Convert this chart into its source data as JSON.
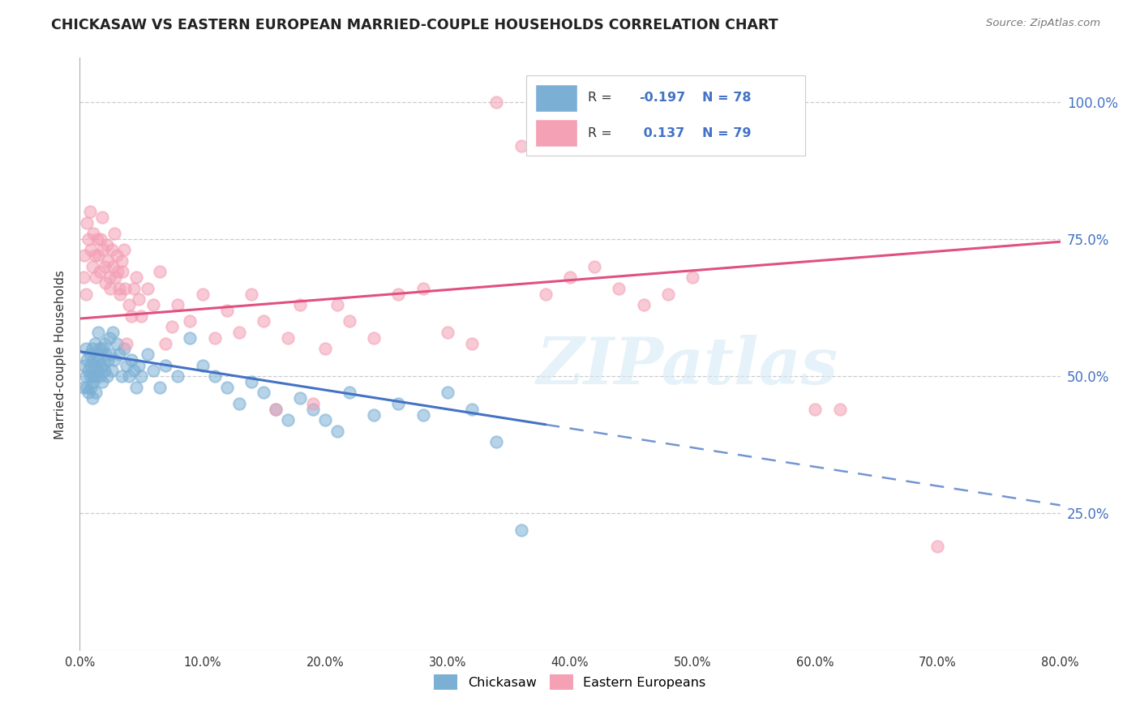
{
  "title": "CHICKASAW VS EASTERN EUROPEAN MARRIED-COUPLE HOUSEHOLDS CORRELATION CHART",
  "source": "Source: ZipAtlas.com",
  "ylabel": "Married-couple Households",
  "ytick_labels": [
    "25.0%",
    "50.0%",
    "75.0%",
    "100.0%"
  ],
  "ytick_values": [
    0.25,
    0.5,
    0.75,
    1.0
  ],
  "xlim": [
    0.0,
    0.8
  ],
  "ylim": [
    0.0,
    1.08
  ],
  "chickasaw_color": "#7bafd4",
  "eastern_color": "#f4a0b5",
  "trend_chickasaw_color": "#4472c4",
  "trend_eastern_color": "#e05080",
  "legend_R_chickasaw": "-0.197",
  "legend_N_chickasaw": "78",
  "legend_R_eastern": " 0.137",
  "legend_N_eastern": "79",
  "watermark": "ZIPatlas",
  "trend_chickasaw_x0": 0.0,
  "trend_chickasaw_y0": 0.545,
  "trend_chickasaw_x1": 0.8,
  "trend_chickasaw_y1": 0.265,
  "trend_eastern_x0": 0.0,
  "trend_eastern_y0": 0.605,
  "trend_eastern_x1": 0.8,
  "trend_eastern_y1": 0.745,
  "trend_chickasaw_solid_end": 0.38,
  "chickasaw_points": [
    [
      0.003,
      0.48
    ],
    [
      0.004,
      0.52
    ],
    [
      0.005,
      0.55
    ],
    [
      0.005,
      0.5
    ],
    [
      0.006,
      0.53
    ],
    [
      0.006,
      0.48
    ],
    [
      0.007,
      0.51
    ],
    [
      0.007,
      0.47
    ],
    [
      0.008,
      0.54
    ],
    [
      0.008,
      0.5
    ],
    [
      0.009,
      0.52
    ],
    [
      0.009,
      0.48
    ],
    [
      0.01,
      0.55
    ],
    [
      0.01,
      0.5
    ],
    [
      0.01,
      0.46
    ],
    [
      0.011,
      0.53
    ],
    [
      0.011,
      0.49
    ],
    [
      0.012,
      0.56
    ],
    [
      0.012,
      0.52
    ],
    [
      0.013,
      0.5
    ],
    [
      0.013,
      0.47
    ],
    [
      0.014,
      0.54
    ],
    [
      0.014,
      0.51
    ],
    [
      0.015,
      0.58
    ],
    [
      0.015,
      0.53
    ],
    [
      0.016,
      0.55
    ],
    [
      0.016,
      0.5
    ],
    [
      0.017,
      0.52
    ],
    [
      0.018,
      0.49
    ],
    [
      0.018,
      0.55
    ],
    [
      0.019,
      0.52
    ],
    [
      0.02,
      0.56
    ],
    [
      0.02,
      0.51
    ],
    [
      0.021,
      0.54
    ],
    [
      0.022,
      0.5
    ],
    [
      0.023,
      0.53
    ],
    [
      0.024,
      0.57
    ],
    [
      0.025,
      0.54
    ],
    [
      0.026,
      0.51
    ],
    [
      0.027,
      0.58
    ],
    [
      0.028,
      0.53
    ],
    [
      0.03,
      0.56
    ],
    [
      0.032,
      0.54
    ],
    [
      0.034,
      0.5
    ],
    [
      0.036,
      0.55
    ],
    [
      0.038,
      0.52
    ],
    [
      0.04,
      0.5
    ],
    [
      0.042,
      0.53
    ],
    [
      0.044,
      0.51
    ],
    [
      0.046,
      0.48
    ],
    [
      0.048,
      0.52
    ],
    [
      0.05,
      0.5
    ],
    [
      0.055,
      0.54
    ],
    [
      0.06,
      0.51
    ],
    [
      0.065,
      0.48
    ],
    [
      0.07,
      0.52
    ],
    [
      0.08,
      0.5
    ],
    [
      0.09,
      0.57
    ],
    [
      0.1,
      0.52
    ],
    [
      0.11,
      0.5
    ],
    [
      0.12,
      0.48
    ],
    [
      0.13,
      0.45
    ],
    [
      0.14,
      0.49
    ],
    [
      0.15,
      0.47
    ],
    [
      0.16,
      0.44
    ],
    [
      0.17,
      0.42
    ],
    [
      0.18,
      0.46
    ],
    [
      0.19,
      0.44
    ],
    [
      0.2,
      0.42
    ],
    [
      0.21,
      0.4
    ],
    [
      0.22,
      0.47
    ],
    [
      0.24,
      0.43
    ],
    [
      0.26,
      0.45
    ],
    [
      0.28,
      0.43
    ],
    [
      0.3,
      0.47
    ],
    [
      0.32,
      0.44
    ],
    [
      0.34,
      0.38
    ],
    [
      0.36,
      0.22
    ]
  ],
  "eastern_points": [
    [
      0.003,
      0.68
    ],
    [
      0.004,
      0.72
    ],
    [
      0.005,
      0.65
    ],
    [
      0.006,
      0.78
    ],
    [
      0.007,
      0.75
    ],
    [
      0.008,
      0.8
    ],
    [
      0.009,
      0.73
    ],
    [
      0.01,
      0.7
    ],
    [
      0.011,
      0.76
    ],
    [
      0.012,
      0.72
    ],
    [
      0.013,
      0.68
    ],
    [
      0.014,
      0.75
    ],
    [
      0.015,
      0.72
    ],
    [
      0.016,
      0.69
    ],
    [
      0.017,
      0.75
    ],
    [
      0.018,
      0.79
    ],
    [
      0.019,
      0.73
    ],
    [
      0.02,
      0.7
    ],
    [
      0.021,
      0.67
    ],
    [
      0.022,
      0.74
    ],
    [
      0.023,
      0.71
    ],
    [
      0.024,
      0.68
    ],
    [
      0.025,
      0.66
    ],
    [
      0.026,
      0.73
    ],
    [
      0.027,
      0.7
    ],
    [
      0.028,
      0.76
    ],
    [
      0.029,
      0.68
    ],
    [
      0.03,
      0.72
    ],
    [
      0.031,
      0.69
    ],
    [
      0.032,
      0.66
    ],
    [
      0.033,
      0.65
    ],
    [
      0.034,
      0.71
    ],
    [
      0.035,
      0.69
    ],
    [
      0.036,
      0.73
    ],
    [
      0.037,
      0.66
    ],
    [
      0.038,
      0.56
    ],
    [
      0.04,
      0.63
    ],
    [
      0.042,
      0.61
    ],
    [
      0.044,
      0.66
    ],
    [
      0.046,
      0.68
    ],
    [
      0.048,
      0.64
    ],
    [
      0.05,
      0.61
    ],
    [
      0.055,
      0.66
    ],
    [
      0.06,
      0.63
    ],
    [
      0.065,
      0.69
    ],
    [
      0.07,
      0.56
    ],
    [
      0.075,
      0.59
    ],
    [
      0.08,
      0.63
    ],
    [
      0.09,
      0.6
    ],
    [
      0.1,
      0.65
    ],
    [
      0.11,
      0.57
    ],
    [
      0.12,
      0.62
    ],
    [
      0.13,
      0.58
    ],
    [
      0.14,
      0.65
    ],
    [
      0.15,
      0.6
    ],
    [
      0.16,
      0.44
    ],
    [
      0.17,
      0.57
    ],
    [
      0.18,
      0.63
    ],
    [
      0.19,
      0.45
    ],
    [
      0.2,
      0.55
    ],
    [
      0.21,
      0.63
    ],
    [
      0.22,
      0.6
    ],
    [
      0.24,
      0.57
    ],
    [
      0.26,
      0.65
    ],
    [
      0.28,
      0.66
    ],
    [
      0.3,
      0.58
    ],
    [
      0.32,
      0.56
    ],
    [
      0.34,
      1.0
    ],
    [
      0.36,
      0.92
    ],
    [
      0.38,
      0.65
    ],
    [
      0.4,
      0.68
    ],
    [
      0.42,
      0.7
    ],
    [
      0.44,
      0.66
    ],
    [
      0.46,
      0.63
    ],
    [
      0.48,
      0.65
    ],
    [
      0.5,
      0.68
    ],
    [
      0.6,
      0.44
    ],
    [
      0.62,
      0.44
    ],
    [
      0.7,
      0.19
    ]
  ]
}
